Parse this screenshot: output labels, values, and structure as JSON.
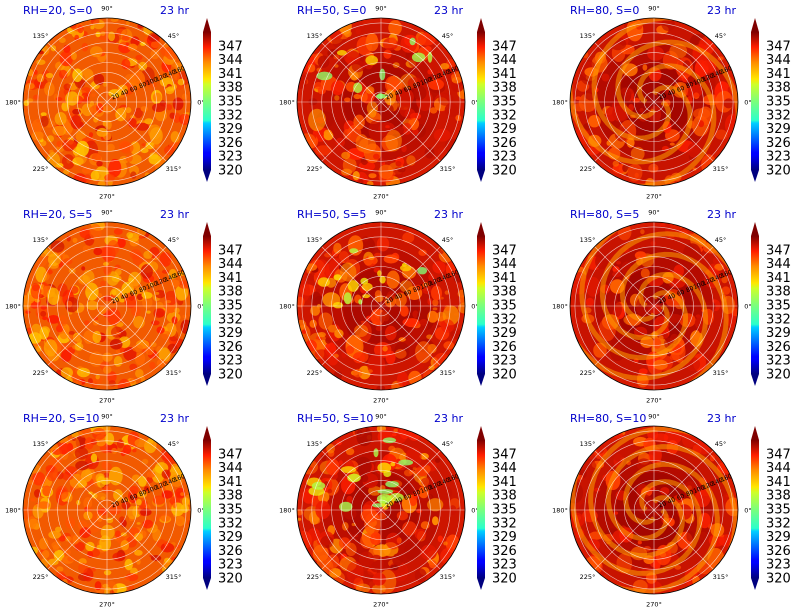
{
  "chart_data": [
    {
      "type": "heatmap",
      "title": "RH=20, S=0",
      "time": "23 hr",
      "rh": 20,
      "s": 0
    },
    {
      "type": "heatmap",
      "title": "RH=50, S=0",
      "time": "23 hr",
      "rh": 50,
      "s": 0
    },
    {
      "type": "heatmap",
      "title": "RH=80, S=0",
      "time": "23 hr",
      "rh": 80,
      "s": 0
    },
    {
      "type": "heatmap",
      "title": "RH=20, S=5",
      "time": "23 hr",
      "rh": 20,
      "s": 5
    },
    {
      "type": "heatmap",
      "title": "RH=50, S=5",
      "time": "23 hr",
      "rh": 50,
      "s": 5
    },
    {
      "type": "heatmap",
      "title": "RH=80, S=5",
      "time": "23 hr",
      "rh": 80,
      "s": 5
    },
    {
      "type": "heatmap",
      "title": "RH=20, S=10",
      "time": "23 hr",
      "rh": 20,
      "s": 10
    },
    {
      "type": "heatmap",
      "title": "RH=50, S=10",
      "time": "23 hr",
      "rh": 50,
      "s": 10
    },
    {
      "type": "heatmap",
      "title": "RH=80, S=10",
      "time": "23 hr",
      "rh": 80,
      "s": 10
    }
  ],
  "shared": {
    "angle_labels": [
      "0°",
      "45°",
      "90°",
      "135°",
      "180°",
      "225°",
      "270°",
      "315°"
    ],
    "angle_values": [
      0,
      45,
      90,
      135,
      180,
      225,
      270,
      315
    ],
    "radial_labels": [
      "20",
      "40",
      "60",
      "80",
      "100",
      "120",
      "140",
      "160"
    ],
    "radial_values": [
      20,
      40,
      60,
      80,
      100,
      120,
      140,
      160
    ],
    "r_max": 170,
    "colorbar": {
      "ticks": [
        "347",
        "344",
        "341",
        "338",
        "335",
        "332",
        "329",
        "326",
        "323",
        "320"
      ],
      "min": 320,
      "max": 350,
      "extend": "both",
      "colormap": "jet"
    }
  }
}
